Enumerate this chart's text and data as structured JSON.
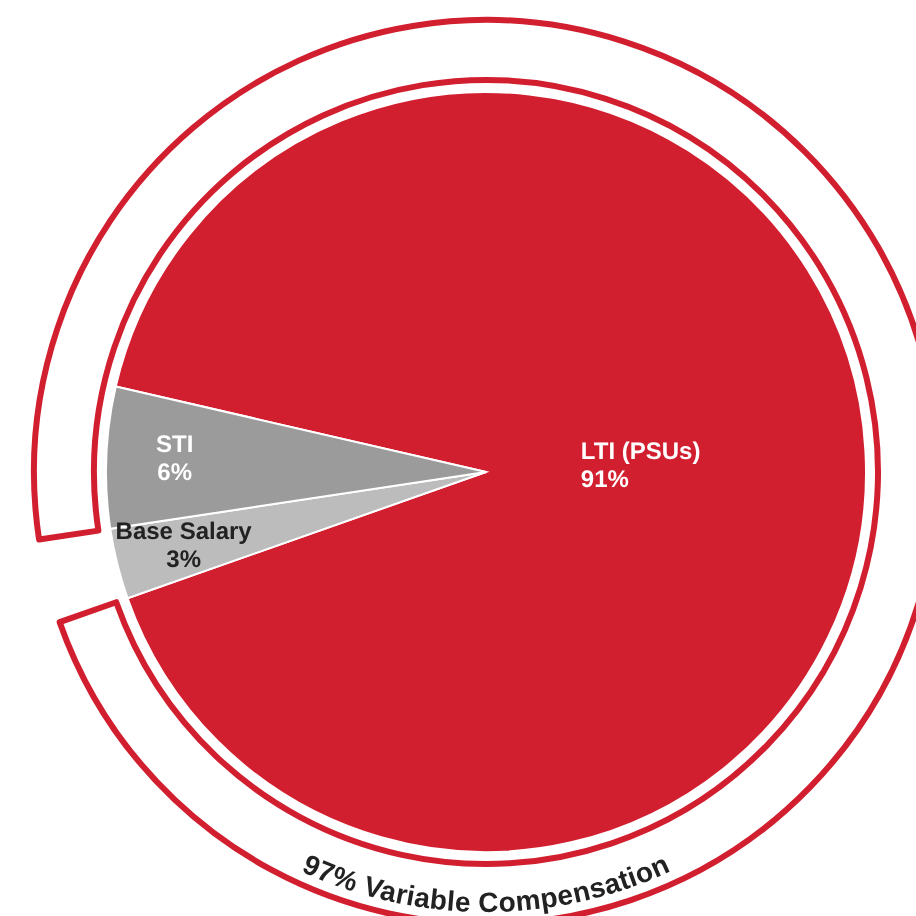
{
  "chart_data": {
    "type": "pie",
    "categories": [
      "LTI (PSUs)",
      "Base Salary",
      "STI"
    ],
    "values": [
      91,
      3,
      6
    ],
    "colors": [
      "#d21f2f",
      "#bcbcbc",
      "#9b9b9b"
    ],
    "value_labels": [
      "91%",
      "3%",
      "6%"
    ],
    "annotations": [
      "97% Variable Compensation"
    ]
  }
}
